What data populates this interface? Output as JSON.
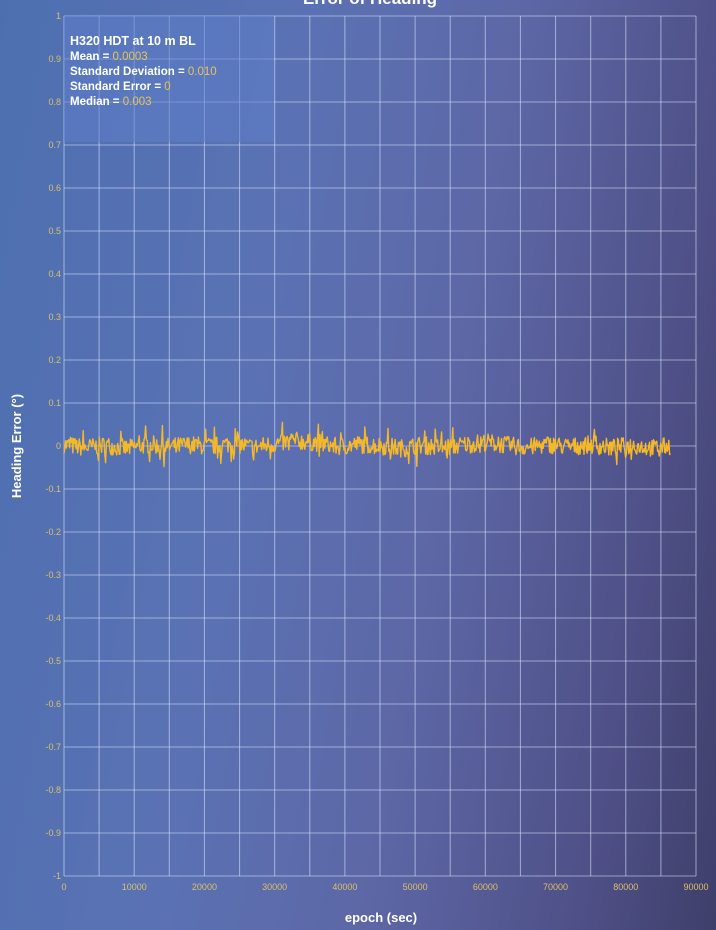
{
  "chart_data": {
    "type": "line",
    "title": "Error of Heading",
    "xlabel": "epoch (sec)",
    "ylabel": "Heading Error (°)",
    "xlim": [
      0,
      90000
    ],
    "ylim": [
      -1,
      1
    ],
    "x_ticks": [
      "0",
      "10000",
      "20000",
      "30000",
      "40000",
      "50000",
      "60000",
      "70000",
      "80000",
      "90000"
    ],
    "y_ticks": [
      "1",
      "0.9",
      "0.8",
      "0.7",
      "0.6",
      "0.5",
      "0.4",
      "0.3",
      "0.2",
      "0.1",
      "0",
      "-0.1",
      "-0.2",
      "-0.3",
      "-0.4",
      "-0.5",
      "-0.6",
      "-0.7",
      "-0.8",
      "-0.9",
      "-1"
    ],
    "grid": true,
    "series": [
      {
        "color": "#f5b826",
        "x": [
          0,
          3000,
          6000,
          9000,
          12000,
          15000,
          18000,
          21000,
          24000,
          27000,
          30000,
          33000,
          36000,
          39000,
          42000,
          45000,
          48000,
          51000,
          54000,
          57000,
          60000,
          63000,
          66000,
          69000,
          72000,
          75000,
          78000,
          81000,
          84000,
          86400
        ],
        "y": [
          0.003,
          -0.004,
          0.002,
          -0.006,
          0.004,
          -0.002,
          0.003,
          -0.001,
          0.006,
          -0.003,
          0.005,
          0.012,
          0.008,
          -0.002,
          0.004,
          0.001,
          -0.005,
          0.002,
          -0.004,
          0.003,
          0.009,
          0.002,
          -0.003,
          0.004,
          -0.002,
          0.003,
          -0.004,
          0.002,
          -0.005,
          0.001
        ],
        "noise_amplitude": 0.03
      }
    ]
  },
  "stats_box": {
    "title": "H320 HDT at 10 m BL",
    "lines": [
      {
        "label": "Mean = ",
        "value": "0.0003"
      },
      {
        "label": "Standard Deviation = ",
        "value": "0.010"
      },
      {
        "label": "Standard Error = ",
        "value": "0"
      },
      {
        "label": "Median = ",
        "value": "0.003"
      }
    ]
  }
}
